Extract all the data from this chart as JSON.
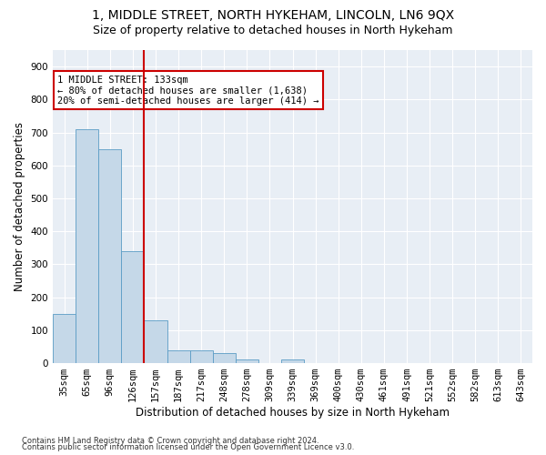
{
  "title": "1, MIDDLE STREET, NORTH HYKEHAM, LINCOLN, LN6 9QX",
  "subtitle": "Size of property relative to detached houses in North Hykeham",
  "xlabel": "Distribution of detached houses by size in North Hykeham",
  "ylabel": "Number of detached properties",
  "footnote1": "Contains HM Land Registry data © Crown copyright and database right 2024.",
  "footnote2": "Contains public sector information licensed under the Open Government Licence v3.0.",
  "categories": [
    "35sqm",
    "65sqm",
    "96sqm",
    "126sqm",
    "157sqm",
    "187sqm",
    "217sqm",
    "248sqm",
    "278sqm",
    "309sqm",
    "339sqm",
    "369sqm",
    "400sqm",
    "430sqm",
    "461sqm",
    "491sqm",
    "521sqm",
    "552sqm",
    "582sqm",
    "613sqm",
    "643sqm"
  ],
  "values": [
    150,
    710,
    650,
    340,
    130,
    40,
    40,
    30,
    10,
    0,
    10,
    0,
    0,
    0,
    0,
    0,
    0,
    0,
    0,
    0,
    0
  ],
  "bar_color": "#c5d8e8",
  "bar_edge_color": "#5a9cc5",
  "vline_x": 3.5,
  "vline_color": "#cc0000",
  "annotation_line1": "1 MIDDLE STREET: 133sqm",
  "annotation_line2": "← 80% of detached houses are smaller (1,638)",
  "annotation_line3": "20% of semi-detached houses are larger (414) →",
  "annotation_box_color": "#ffffff",
  "annotation_box_edge": "#cc0000",
  "ylim": [
    0,
    950
  ],
  "yticks": [
    0,
    100,
    200,
    300,
    400,
    500,
    600,
    700,
    800,
    900
  ],
  "bg_color": "#e8eef5",
  "fig_bg_color": "#ffffff",
  "title_fontsize": 10,
  "subtitle_fontsize": 9,
  "tick_fontsize": 7.5,
  "label_fontsize": 8.5,
  "annotation_fontsize": 7.5,
  "footnote_fontsize": 6
}
